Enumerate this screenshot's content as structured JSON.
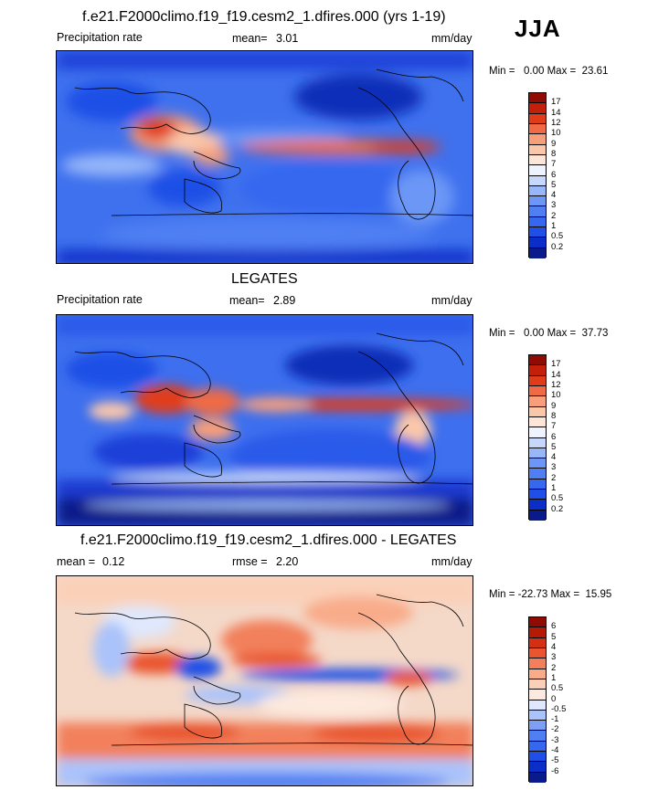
{
  "season": "JJA",
  "chart_data": [
    {
      "type": "heatmap",
      "title": "f.e21.F2000climo.f19_f19.cesm2_1.dfires.000 (yrs 1-19)",
      "left_label": "Precipitation rate",
      "mean_label": "mean=",
      "mean_value": "3.01",
      "units": "mm/day",
      "minmax": "Min =   0.00 Max =  23.61",
      "colorbar_levels": [
        "0.2",
        "0.5",
        "1",
        "2",
        "3",
        "4",
        "5",
        "6",
        "7",
        "8",
        "9",
        "10",
        "12",
        "14",
        "17"
      ],
      "colors": [
        "#0a1a8a",
        "#0b2ec8",
        "#1f4fe6",
        "#3567ef",
        "#4f7ff3",
        "#6c97f6",
        "#97b7f9",
        "#c6d8fc",
        "#eef3fe",
        "#fde6d8",
        "#fbc7ab",
        "#f79e7a",
        "#ef6a45",
        "#e03c1a",
        "#c41f0a",
        "#8e0c04"
      ]
    },
    {
      "type": "heatmap",
      "title": "LEGATES",
      "left_label": "Precipitation rate",
      "mean_label": "mean=",
      "mean_value": "2.89",
      "units": "mm/day",
      "minmax": "Min =   0.00 Max =  37.73",
      "colorbar_levels": [
        "0.2",
        "0.5",
        "1",
        "2",
        "3",
        "4",
        "5",
        "6",
        "7",
        "8",
        "9",
        "10",
        "12",
        "14",
        "17"
      ],
      "colors": [
        "#0a1a8a",
        "#0b2ec8",
        "#1f4fe6",
        "#3567ef",
        "#4f7ff3",
        "#6c97f6",
        "#97b7f9",
        "#c6d8fc",
        "#eef3fe",
        "#fde6d8",
        "#fbc7ab",
        "#f79e7a",
        "#ef6a45",
        "#e03c1a",
        "#c41f0a",
        "#8e0c04"
      ]
    },
    {
      "type": "heatmap",
      "title": "f.e21.F2000climo.f19_f19.cesm2_1.dfires.000 - LEGATES",
      "left_label": "mean =",
      "left_value": "0.12",
      "mean_label": "rmse =",
      "mean_value": "2.20",
      "units": "mm/day",
      "minmax": "Min = -22.73 Max =  15.95",
      "colorbar_levels": [
        "-6",
        "-5",
        "-4",
        "-3",
        "-2",
        "-1",
        "-0.5",
        "0",
        "0.5",
        "1",
        "2",
        "3",
        "4",
        "5",
        "6"
      ],
      "colors": [
        "#0a1a8a",
        "#0b2ec8",
        "#1f4fe6",
        "#3567ef",
        "#4f7ff3",
        "#7d9ff6",
        "#aac3fa",
        "#dfe8fd",
        "#fde9de",
        "#fbd0b8",
        "#f8ac8a",
        "#f2805c",
        "#e8552f",
        "#d42f12",
        "#b51a06",
        "#8e0c04"
      ]
    }
  ]
}
